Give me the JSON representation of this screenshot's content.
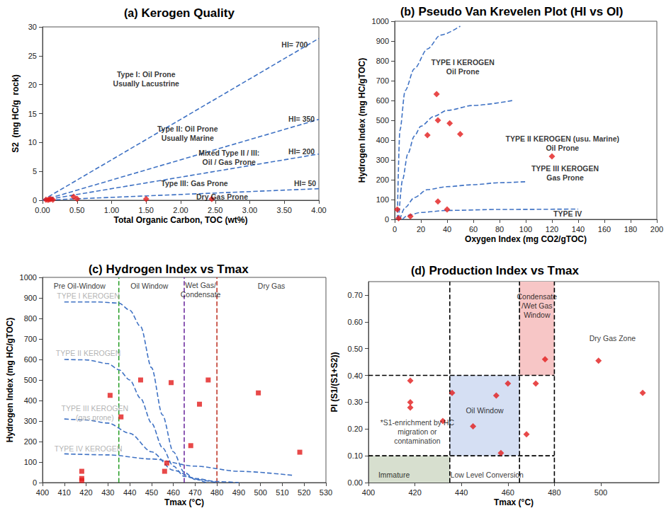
{
  "chart_data": [
    {
      "type": "scatter",
      "panel": "(a)",
      "title": "Kerogen Quality",
      "x_label": "Total Organic Carbon, TOC (wt%)",
      "y_label": "S2  (mg HC/g  rock)",
      "xlim": [
        0,
        4
      ],
      "ylim": [
        0,
        30
      ],
      "grid": false,
      "xticks": [
        {
          "value": 0,
          "label": "0.00"
        },
        {
          "value": 0.5,
          "label": "0.50"
        },
        {
          "value": 1,
          "label": "1.00"
        },
        {
          "value": 1.5,
          "label": "1.50"
        },
        {
          "value": 2,
          "label": "2.00"
        },
        {
          "value": 2.5,
          "label": "2.50"
        },
        {
          "value": 3,
          "label": "3.00"
        },
        {
          "value": 3.5,
          "label": "3.50"
        },
        {
          "value": 4,
          "label": "4.00"
        }
      ],
      "yticks": [
        0,
        5,
        10,
        15,
        20,
        25,
        30
      ],
      "series": [
        {
          "type": "line",
          "line_style": "dashed",
          "color": "#3f72c4",
          "x": [
            0,
            4
          ],
          "y": [
            0,
            28
          ]
        },
        {
          "type": "line",
          "line_style": "dashed",
          "color": "#3f72c4",
          "x": [
            0,
            4
          ],
          "y": [
            0,
            14
          ]
        },
        {
          "type": "line",
          "line_style": "dashed",
          "color": "#3f72c4",
          "x": [
            0,
            4
          ],
          "y": [
            0,
            8
          ]
        },
        {
          "type": "line",
          "line_style": "dashed",
          "color": "#3f72c4",
          "x": [
            0,
            4
          ],
          "y": [
            0,
            2
          ]
        },
        {
          "type": "scatter",
          "marker": "diamond",
          "color": "#e21c1c",
          "x": [
            0.05,
            0.08,
            0.1,
            0.12,
            0.15,
            0.45,
            0.5,
            1.5,
            2.45
          ],
          "y": [
            0.1,
            0.05,
            0.15,
            0.2,
            0.1,
            0.6,
            0.25,
            0.2,
            0.2
          ]
        }
      ],
      "annotations": [
        {
          "text": "Type I: Oil Prone\nUsually Lacustrine",
          "x": 1.5,
          "y": 21
        },
        {
          "text": "Type II: Oil Prone\nUsually Marine",
          "x": 2.1,
          "y": 11.6
        },
        {
          "text": "Mixed Type II / III:\nOil / Gas Prone",
          "x": 2.7,
          "y": 7.4
        },
        {
          "text": "Type III: Gas Prone",
          "x": 2.2,
          "y": 2.9
        },
        {
          "text": "Dry Gas Prone",
          "x": 2.6,
          "y": 0.65
        },
        {
          "text": "HI= 700",
          "x": 3.65,
          "y": 26.9
        },
        {
          "text": "HI= 350",
          "x": 3.75,
          "y": 14.1
        },
        {
          "text": "HI= 200",
          "x": 3.75,
          "y": 8.4
        },
        {
          "text": "HI= 50",
          "x": 3.8,
          "y": 2.9
        }
      ]
    },
    {
      "type": "scatter",
      "panel": "(b)",
      "title": "Pseudo Van Krevelen Plot (HI vs OI)",
      "x_label": "Oxygen Index (mg CO2/gTOC)",
      "y_label": "Hydrogen Index (mg HC/gTOC)",
      "xlim": [
        0,
        200
      ],
      "ylim": [
        0,
        1000
      ],
      "grid": false,
      "xticks": [
        0,
        20,
        40,
        60,
        80,
        100,
        120,
        140,
        160,
        180,
        200
      ],
      "yticks": [
        0,
        100,
        200,
        300,
        400,
        500,
        600,
        700,
        800,
        900,
        1000
      ],
      "series": [
        {
          "type": "line",
          "line_style": "dashed",
          "color": "#3f72c4",
          "x": [
            2,
            4,
            8,
            15,
            25,
            35,
            50
          ],
          "y": [
            0,
            450,
            650,
            760,
            860,
            930,
            975
          ]
        },
        {
          "type": "line",
          "line_style": "dashed",
          "color": "#3f72c4",
          "x": [
            3,
            6,
            10,
            15,
            20,
            30,
            40,
            60,
            90
          ],
          "y": [
            0,
            200,
            330,
            420,
            470,
            520,
            550,
            575,
            600
          ]
        },
        {
          "type": "line",
          "line_style": "dashed",
          "color": "#3f72c4",
          "x": [
            4,
            8,
            15,
            25,
            40,
            60,
            80,
            100
          ],
          "y": [
            0,
            60,
            110,
            150,
            165,
            175,
            185,
            190
          ]
        },
        {
          "type": "line",
          "line_style": "dashed",
          "color": "#3f72c4",
          "x": [
            6,
            10,
            20,
            40,
            80,
            140
          ],
          "y": [
            0,
            20,
            35,
            45,
            50,
            52
          ]
        },
        {
          "type": "scatter",
          "marker": "diamond",
          "color": "#e21c1c",
          "x": [
            32,
            33,
            25,
            42,
            50,
            120,
            33,
            40,
            12,
            2,
            3
          ],
          "y": [
            632,
            500,
            425,
            485,
            430,
            318,
            90,
            50,
            15,
            50,
            5
          ]
        }
      ],
      "annotations": [
        {
          "text": "TYPE I KEROGEN\nOil Prone",
          "x": 52,
          "y": 770
        },
        {
          "text": "TYPE II KEROGEN (usu. Marine)\nOil Prone",
          "x": 128,
          "y": 385
        },
        {
          "text": "TYPE III KEROGEN\nGas Prone",
          "x": 130,
          "y": 235
        },
        {
          "text": "TYPE IV",
          "x": 132,
          "y": 28
        }
      ]
    },
    {
      "type": "scatter",
      "panel": "(c)",
      "title": "Hydrogen Index vs Tmax",
      "x_label": "Tmax (°C)",
      "y_label": "Hydrogen Index (mg HC/gTOC)",
      "xlim": [
        400,
        530
      ],
      "ylim": [
        0,
        1000
      ],
      "grid": false,
      "xticks": [
        400,
        410,
        420,
        430,
        440,
        450,
        460,
        470,
        480,
        490,
        500,
        510,
        520,
        530
      ],
      "yticks": [
        0,
        100,
        200,
        300,
        400,
        500,
        600,
        700,
        800,
        900,
        1000
      ],
      "series": [
        {
          "type": "line",
          "line_style": "dashed",
          "color": "#2ca02c",
          "x": [
            435,
            435
          ],
          "y": [
            0,
            1000
          ]
        },
        {
          "type": "line",
          "line_style": "dashed",
          "color": "#7030a0",
          "x": [
            465,
            465
          ],
          "y": [
            0,
            1000
          ]
        },
        {
          "type": "line",
          "line_style": "dashed",
          "color": "#c0392b",
          "x": [
            480,
            480
          ],
          "y": [
            0,
            1000
          ]
        },
        {
          "type": "line",
          "line_style": "dashed",
          "color": "#3f72c4",
          "x": [
            410,
            425,
            435,
            440,
            445,
            450,
            455,
            460,
            465,
            470,
            480
          ],
          "y": [
            880,
            880,
            875,
            840,
            760,
            560,
            330,
            150,
            50,
            15,
            0
          ]
        },
        {
          "type": "line",
          "line_style": "dashed",
          "color": "#3f72c4",
          "x": [
            410,
            420,
            430,
            435,
            440,
            445,
            450,
            455,
            460,
            465,
            475
          ],
          "y": [
            600,
            598,
            580,
            550,
            500,
            410,
            290,
            170,
            80,
            30,
            0
          ]
        },
        {
          "type": "line",
          "line_style": "dashed",
          "color": "#3f72c4",
          "x": [
            410,
            420,
            430,
            440,
            450,
            460,
            470,
            480,
            490
          ],
          "y": [
            310,
            305,
            290,
            240,
            150,
            60,
            20,
            5,
            0
          ]
        },
        {
          "type": "line",
          "line_style": "dashed",
          "color": "#3f72c4",
          "x": [
            410,
            430,
            450,
            470,
            490,
            515
          ],
          "y": [
            140,
            135,
            115,
            80,
            55,
            35
          ]
        },
        {
          "type": "scatter",
          "marker": "square",
          "color": "#e21c1c",
          "x": [
            418,
            418,
            418,
            431,
            436,
            445,
            459,
            472,
            476,
            468,
            456,
            457,
            499,
            518
          ],
          "y": [
            55,
            20,
            10,
            425,
            320,
            500,
            487,
            382,
            500,
            180,
            55,
            95,
            437,
            148
          ]
        }
      ],
      "annotations": [
        {
          "text": "Pre Oil-Window",
          "x": 417,
          "y": 960,
          "color": "#000000"
        },
        {
          "text": "Oil Window",
          "x": 449,
          "y": 960,
          "color": "#000000"
        },
        {
          "text": "Wet Gas/\nCondensate",
          "x": 472.5,
          "y": 940,
          "color": "#000000"
        },
        {
          "text": "Dry Gas",
          "x": 505,
          "y": 960,
          "color": "#000000"
        },
        {
          "text": "TYPE I KEROGEN",
          "x": 421,
          "y": 910,
          "color": "#a0a0a0"
        },
        {
          "text": "TYPE II KEROGEN",
          "x": 421,
          "y": 630,
          "color": "#a0a0a0"
        },
        {
          "text": "TYPE III KEROGEN\n(gas prone)",
          "x": 424,
          "y": 340,
          "color": "#a0a0a0"
        },
        {
          "text": "TYPE IV KEROGEN",
          "x": 421,
          "y": 165,
          "color": "#a0a0a0"
        }
      ]
    },
    {
      "type": "scatter",
      "panel": "(d)",
      "title": "Production Index vs Tmax",
      "x_label": "Tmax (°C)",
      "y_label": "PI (S1/(S1+S2))",
      "xlim": [
        400,
        525
      ],
      "ylim": [
        0,
        0.75
      ],
      "grid": false,
      "xticks": [
        400,
        420,
        440,
        460,
        480,
        500
      ],
      "yticks": [
        {
          "value": 0,
          "label": "0.00"
        },
        {
          "value": 0.1,
          "label": "0.10"
        },
        {
          "value": 0.2,
          "label": "0.20"
        },
        {
          "value": 0.3,
          "label": "0.30"
        },
        {
          "value": 0.4,
          "label": "0.40"
        },
        {
          "value": 0.5,
          "label": "0.50"
        },
        {
          "value": 0.6,
          "label": "0.60"
        },
        {
          "value": 0.7,
          "label": "0.70"
        }
      ],
      "regions": [
        {
          "x": [
            400,
            435
          ],
          "y": [
            0,
            0.1
          ],
          "color": "#d7dfcf"
        },
        {
          "x": [
            435,
            465
          ],
          "y": [
            0.1,
            0.4
          ],
          "color": "#d5dff3"
        },
        {
          "x": [
            465,
            480
          ],
          "y": [
            0.4,
            0.75
          ],
          "color": "#f7c6c6"
        }
      ],
      "series": [
        {
          "type": "line",
          "line_style": "dashed",
          "color": "#000000",
          "x": [
            435,
            435
          ],
          "y": [
            0,
            0.75
          ]
        },
        {
          "type": "line",
          "line_style": "dashed",
          "color": "#000000",
          "x": [
            465,
            465
          ],
          "y": [
            0,
            0.75
          ]
        },
        {
          "type": "line",
          "line_style": "dashed",
          "color": "#000000",
          "x": [
            480,
            480
          ],
          "y": [
            0,
            0.75
          ]
        },
        {
          "type": "line",
          "line_style": "dashed",
          "color": "#000000",
          "x": [
            400,
            480
          ],
          "y": [
            0.1,
            0.1
          ]
        },
        {
          "type": "line",
          "line_style": "dashed",
          "color": "#000000",
          "x": [
            400,
            480
          ],
          "y": [
            0.4,
            0.4
          ]
        },
        {
          "type": "scatter",
          "marker": "diamond",
          "color": "#e21c1c",
          "x": [
            418,
            418,
            418,
            432,
            436,
            445,
            455,
            457,
            460,
            468,
            472,
            476,
            499,
            518
          ],
          "y": [
            0.38,
            0.3,
            0.28,
            0.23,
            0.335,
            0.21,
            0.325,
            0.11,
            0.37,
            0.18,
            0.37,
            0.46,
            0.455,
            0.335
          ]
        }
      ],
      "annotations": [
        {
          "text": "Immature",
          "x": 411,
          "y": 0.03
        },
        {
          "text": "Low Level Conversion",
          "x": 451,
          "y": 0.03
        },
        {
          "text": "Oil Window",
          "x": 450,
          "y": 0.27
        },
        {
          "text": "Condensate\n/Wet Gas\nWindow",
          "x": 472.5,
          "y": 0.66
        },
        {
          "text": "Dry Gas Zone",
          "x": 505,
          "y": 0.54
        },
        {
          "text": "*S1-enrichment by HC\nmigration or\ncontamination",
          "x": 421,
          "y": 0.19
        }
      ]
    }
  ]
}
